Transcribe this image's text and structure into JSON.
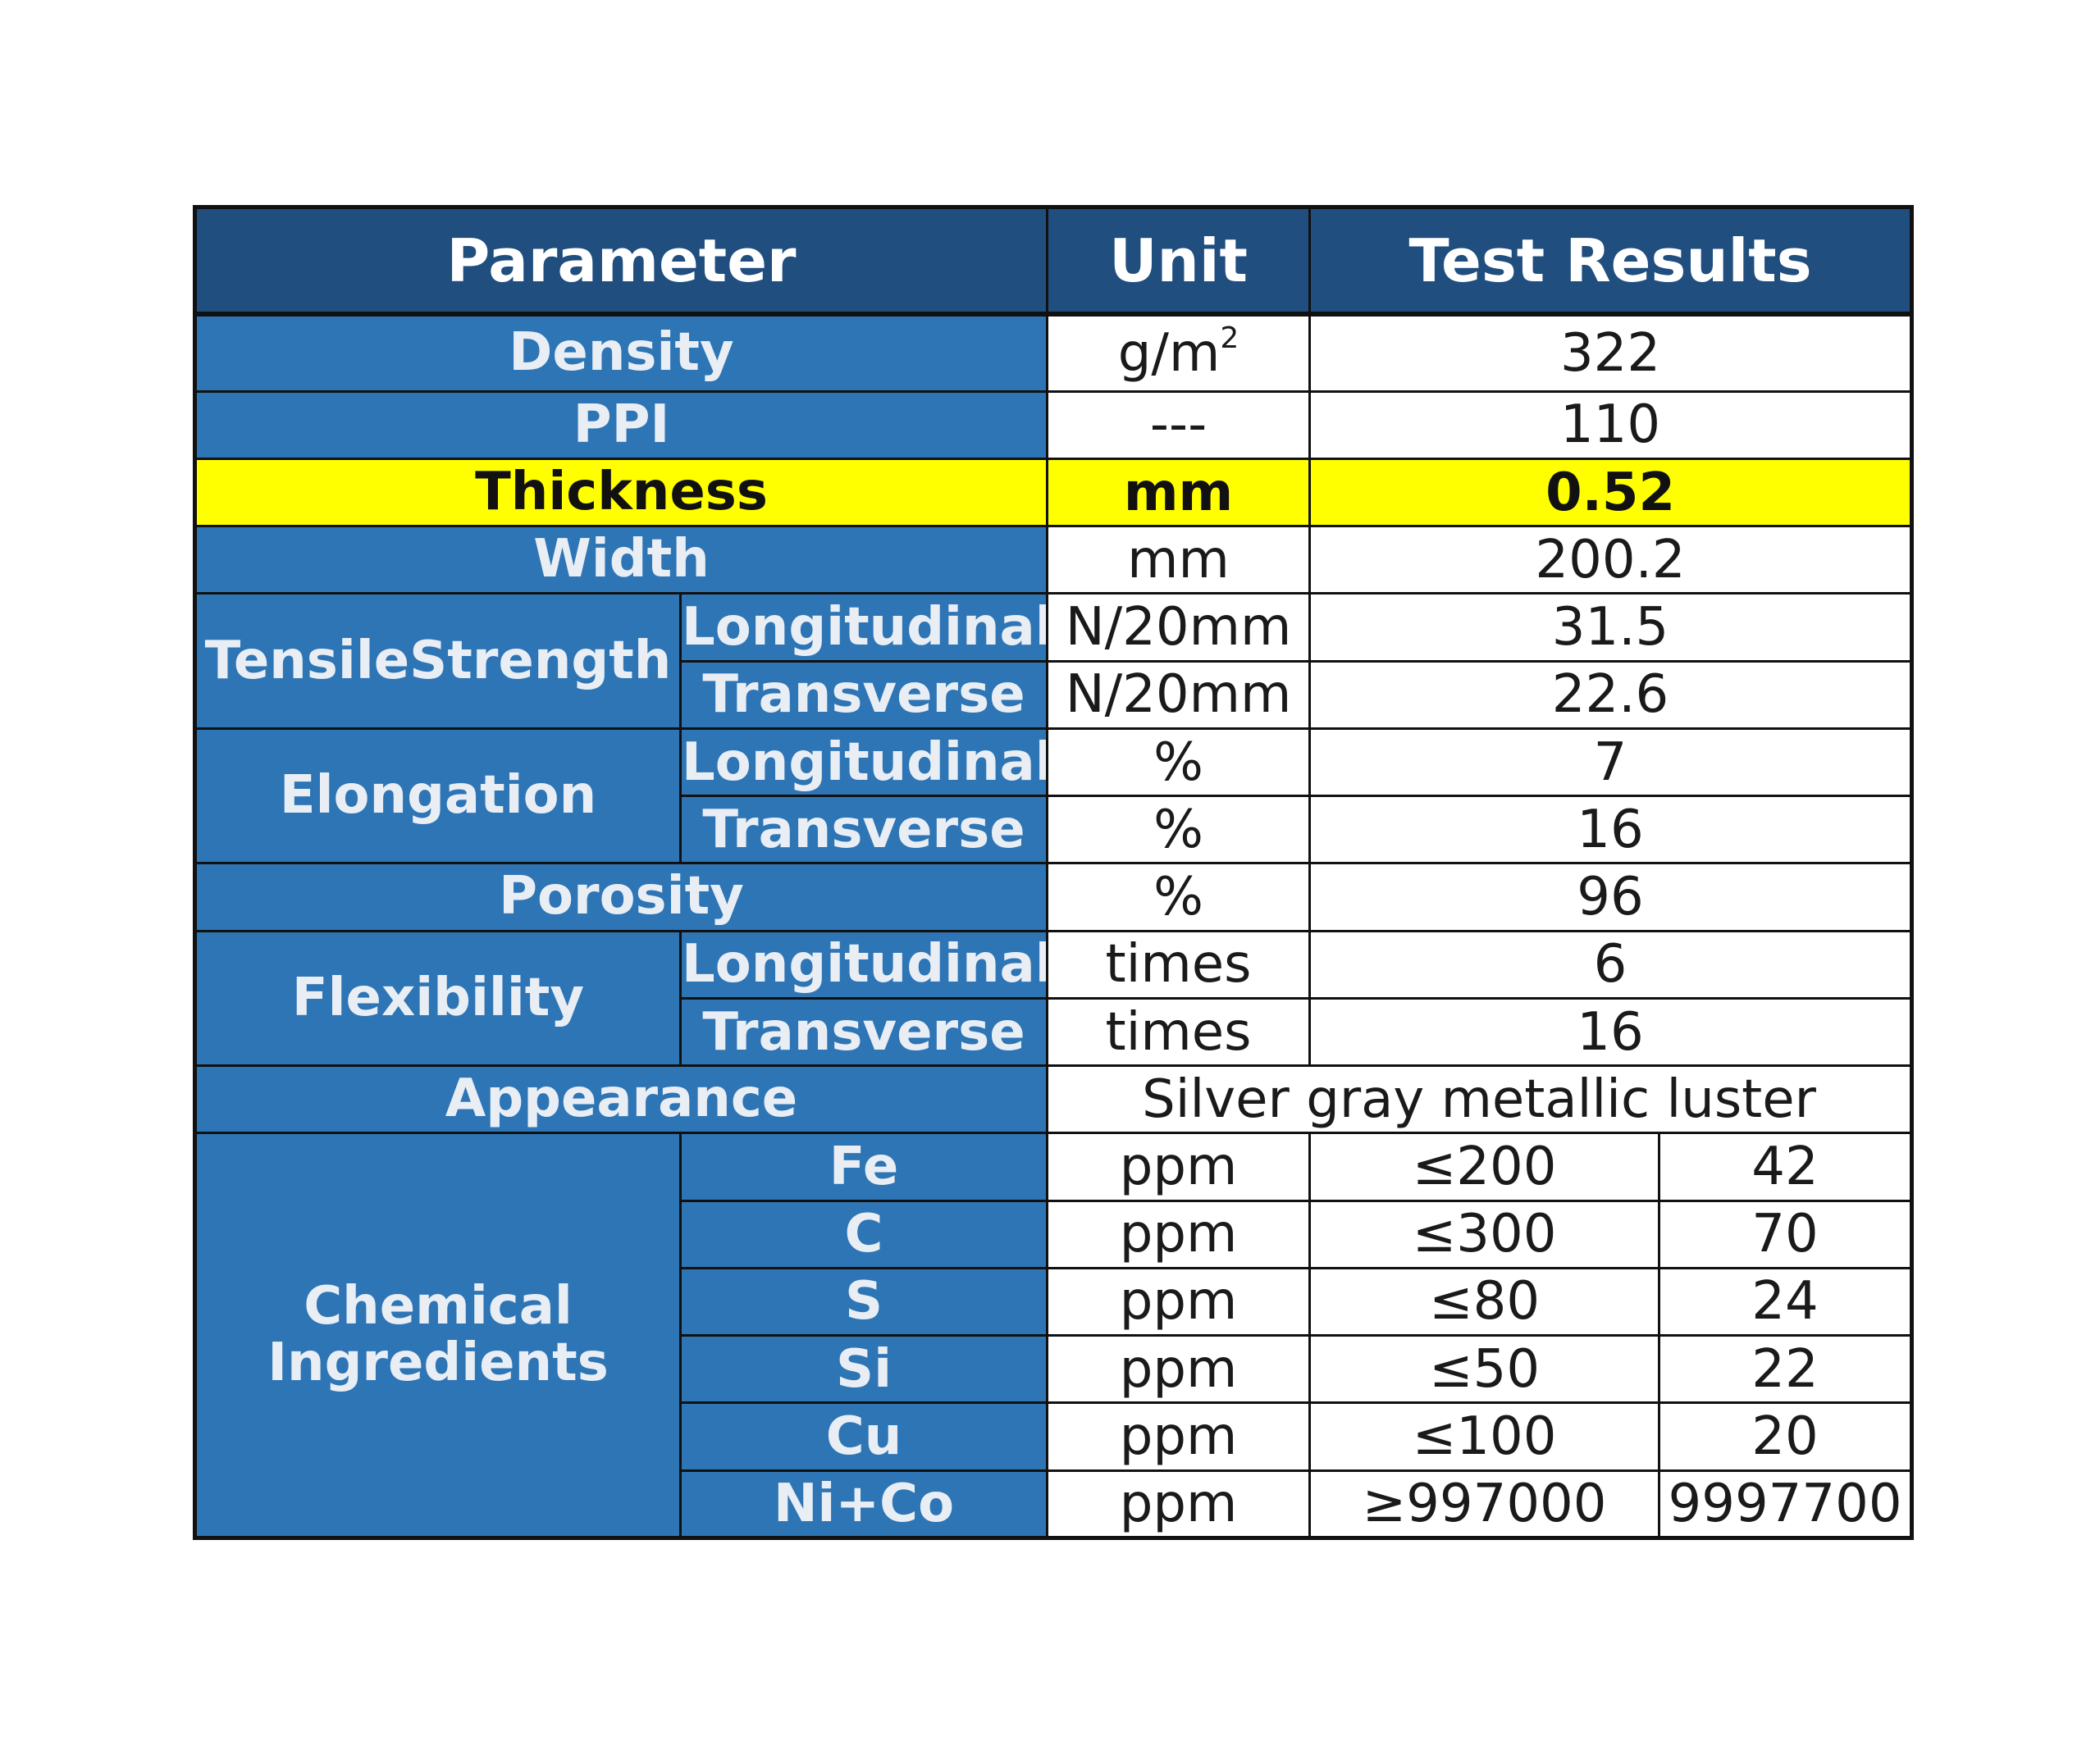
{
  "headers": {
    "parameter": "Parameter",
    "unit": "Unit",
    "test_results": "Test Results"
  },
  "rows": {
    "density": {
      "label": "Density",
      "unit_base": "g/m",
      "unit_sup": "2",
      "value": "322"
    },
    "ppi": {
      "label": "PPI",
      "unit": "---",
      "value": "110"
    },
    "thickness": {
      "label": "Thickness",
      "unit": "mm",
      "value": "0.52"
    },
    "width": {
      "label": "Width",
      "unit": "mm",
      "value": "200.2"
    },
    "tensile_strength": {
      "label": "TensileStrength",
      "longitudinal": {
        "label": "Longitudinal",
        "unit": "N/20mm",
        "value": "31.5"
      },
      "transverse": {
        "label": "Transverse",
        "unit": "N/20mm",
        "value": "22.6"
      }
    },
    "elongation": {
      "label": "Elongation",
      "longitudinal": {
        "label": "Longitudinal",
        "unit": "%",
        "value": "7"
      },
      "transverse": {
        "label": "Transverse",
        "unit": "%",
        "value": "16"
      }
    },
    "porosity": {
      "label": "Porosity",
      "unit": "%",
      "value": "96"
    },
    "flexibility": {
      "label": "Flexibility",
      "longitudinal": {
        "label": "Longitudinal",
        "unit": "times",
        "value": "6"
      },
      "transverse": {
        "label": "Transverse",
        "unit": "times",
        "value": "16"
      }
    },
    "appearance": {
      "label": "Appearance",
      "value": "Silver gray metallic luster"
    },
    "chemical": {
      "label_line1": "Chemical",
      "label_line2": "Ingredients",
      "items": [
        {
          "element": "Fe",
          "unit": "ppm",
          "spec": "≤200",
          "result": "42"
        },
        {
          "element": "C",
          "unit": "ppm",
          "spec": "≤300",
          "result": "70"
        },
        {
          "element": "S",
          "unit": "ppm",
          "spec": "≤80",
          "result": "24"
        },
        {
          "element": "Si",
          "unit": "ppm",
          "spec": "≤50",
          "result": "22"
        },
        {
          "element": "Cu",
          "unit": "ppm",
          "spec": "≤100",
          "result": "20"
        },
        {
          "element": "Ni+Co",
          "unit": "ppm",
          "spec": "≥997000",
          "result": "9997700"
        }
      ]
    }
  },
  "colors": {
    "header_bg": "#1f4e7f",
    "label_bg": "#2e75b6",
    "highlight": "#ffff00",
    "border": "#111111"
  }
}
